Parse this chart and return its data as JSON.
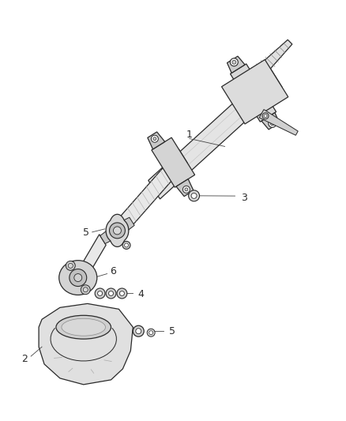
{
  "background_color": "#ffffff",
  "line_color": "#2a2a2a",
  "label_color": "#2a2a2a",
  "figure_width": 4.38,
  "figure_height": 5.33,
  "dpi": 100,
  "fill_light": "#e8e8e8",
  "fill_medium": "#d0d0d0",
  "fill_dark": "#b8b8b8",
  "label_fontsize": 9,
  "leader_color": "#444444",
  "leader_lw": 0.6,
  "main_lw": 0.9,
  "thin_lw": 0.55
}
